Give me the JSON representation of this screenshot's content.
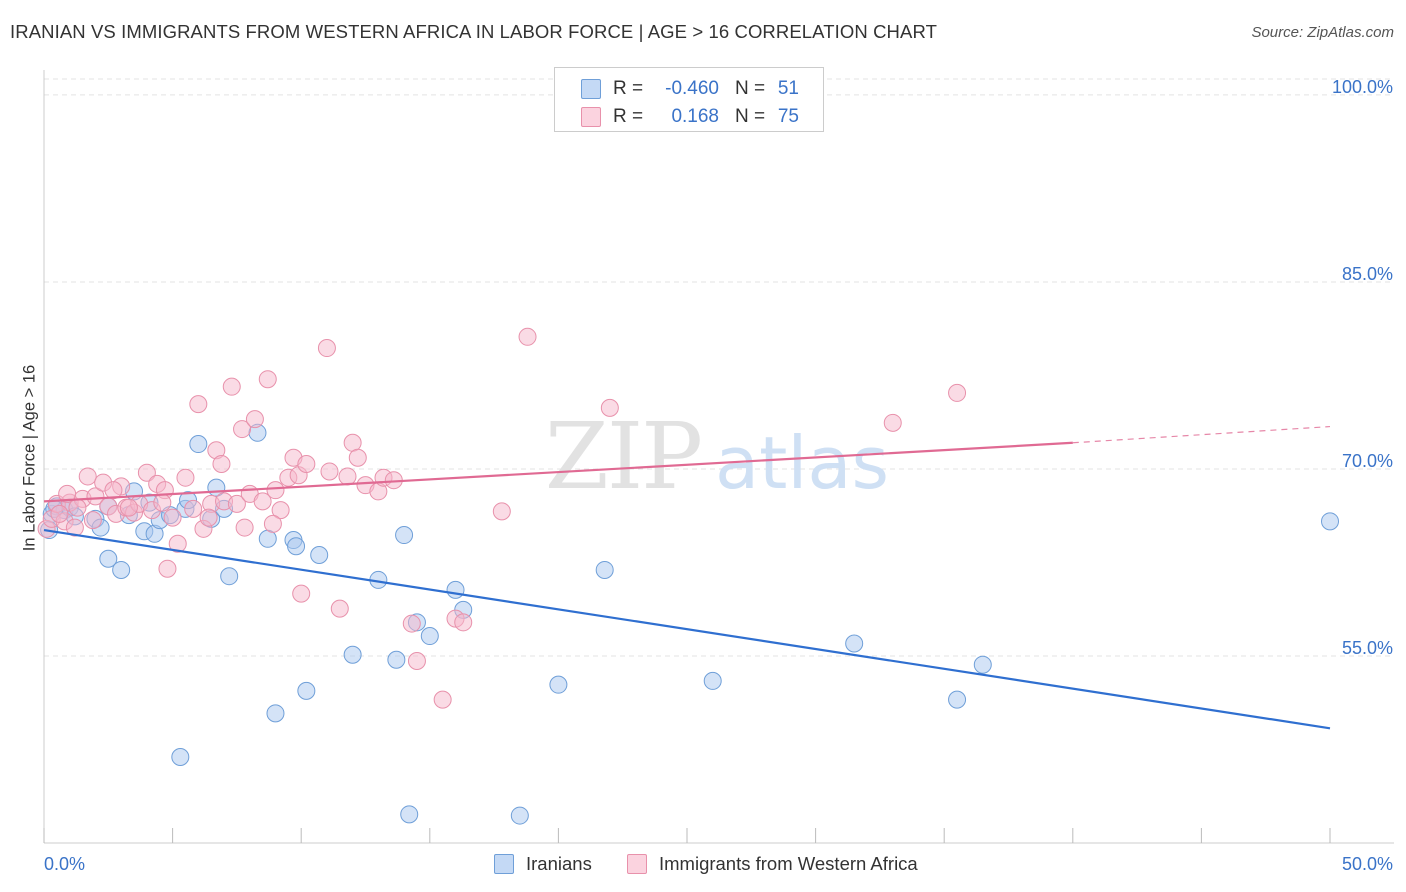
{
  "chart_data": {
    "type": "scatter",
    "title": "IRANIAN VS IMMIGRANTS FROM WESTERN AFRICA IN LABOR FORCE | AGE > 16 CORRELATION CHART",
    "source": "Source: ZipAtlas.com",
    "xlabel": "",
    "ylabel": "In Labor Force | Age > 16",
    "xlim": [
      0,
      50
    ],
    "ylim": [
      40,
      102
    ],
    "x_tick_labels": {
      "left": "0.0%",
      "right": "50.0%"
    },
    "y_ticks": [
      {
        "value": 100,
        "label": "100.0%"
      },
      {
        "value": 85,
        "label": "85.0%"
      },
      {
        "value": 70,
        "label": "70.0%"
      },
      {
        "value": 55,
        "label": "55.0%"
      }
    ],
    "grid": true,
    "legend_position": "top-center",
    "watermark": "ZIPatlas",
    "legend_stats": [
      {
        "r_label": "R =",
        "r_value": "-0.460",
        "n_label": "N =",
        "n_value": "51",
        "color": "#a9c8f0"
      },
      {
        "r_label": "R =",
        "r_value": "0.168",
        "n_label": "N =",
        "n_value": "75",
        "color": "#f5b8cb"
      }
    ],
    "series": [
      {
        "name": "Iranians",
        "color": "#a9c8f0",
        "stroke": "#6f9fd8",
        "trend_color": "#2f6fd0",
        "trend": {
          "x0": 0,
          "y0": 65.1,
          "x1": 50,
          "y1": 49.2
        },
        "points": [
          [
            0.2,
            65.1
          ],
          [
            0.3,
            66.4
          ],
          [
            0.5,
            67.0
          ],
          [
            0.8,
            66.7
          ],
          [
            1.0,
            66.9
          ],
          [
            1.2,
            66.2
          ],
          [
            2.0,
            66.0
          ],
          [
            2.2,
            65.3
          ],
          [
            2.5,
            67.0
          ],
          [
            2.5,
            62.8
          ],
          [
            3.0,
            61.9
          ],
          [
            3.3,
            66.3
          ],
          [
            3.5,
            68.2
          ],
          [
            3.9,
            65.0
          ],
          [
            4.1,
            67.3
          ],
          [
            4.3,
            64.8
          ],
          [
            4.5,
            65.9
          ],
          [
            4.9,
            66.3
          ],
          [
            5.3,
            46.9
          ],
          [
            5.5,
            66.8
          ],
          [
            5.6,
            67.5
          ],
          [
            6.0,
            72.0
          ],
          [
            6.5,
            66.0
          ],
          [
            6.7,
            68.5
          ],
          [
            7.0,
            66.8
          ],
          [
            7.2,
            61.4
          ],
          [
            8.3,
            72.9
          ],
          [
            8.7,
            64.4
          ],
          [
            9.0,
            50.4
          ],
          [
            9.7,
            64.3
          ],
          [
            9.8,
            63.8
          ],
          [
            10.2,
            52.2
          ],
          [
            10.7,
            63.1
          ],
          [
            12.0,
            55.1
          ],
          [
            13.0,
            61.1
          ],
          [
            13.7,
            54.7
          ],
          [
            14.0,
            64.7
          ],
          [
            14.2,
            42.3
          ],
          [
            14.5,
            57.7
          ],
          [
            15.0,
            56.6
          ],
          [
            16.0,
            60.3
          ],
          [
            16.3,
            58.7
          ],
          [
            18.5,
            42.2
          ],
          [
            20.0,
            52.7
          ],
          [
            21.8,
            61.9
          ],
          [
            26.0,
            53.0
          ],
          [
            31.5,
            56.0
          ],
          [
            35.5,
            51.5
          ],
          [
            36.5,
            54.3
          ],
          [
            50.0,
            65.8
          ],
          [
            0.4,
            66.8
          ]
        ]
      },
      {
        "name": "Immigrants from Western Africa",
        "color": "#f5b8cb",
        "stroke": "#e891ab",
        "trend_color": "#e06a93",
        "trend": {
          "x0": 0,
          "y0": 67.4,
          "x1": 40,
          "y1": 72.1,
          "dash_to_x": 50,
          "dash_to_y": 73.4
        },
        "points": [
          [
            0.1,
            65.2
          ],
          [
            0.3,
            66.0
          ],
          [
            0.5,
            67.2
          ],
          [
            0.8,
            65.8
          ],
          [
            1.0,
            67.3
          ],
          [
            1.2,
            65.3
          ],
          [
            1.5,
            67.6
          ],
          [
            1.7,
            69.4
          ],
          [
            2.0,
            67.8
          ],
          [
            2.3,
            68.9
          ],
          [
            2.5,
            67.0
          ],
          [
            2.8,
            66.4
          ],
          [
            3.0,
            68.6
          ],
          [
            3.2,
            66.9
          ],
          [
            3.5,
            66.5
          ],
          [
            3.7,
            67.2
          ],
          [
            4.0,
            69.7
          ],
          [
            4.2,
            66.7
          ],
          [
            4.4,
            68.8
          ],
          [
            4.7,
            68.3
          ],
          [
            4.8,
            62.0
          ],
          [
            5.0,
            66.1
          ],
          [
            5.2,
            64.0
          ],
          [
            5.5,
            69.3
          ],
          [
            5.8,
            66.8
          ],
          [
            6.0,
            75.2
          ],
          [
            6.2,
            65.2
          ],
          [
            6.5,
            67.2
          ],
          [
            6.7,
            71.5
          ],
          [
            6.9,
            70.4
          ],
          [
            7.0,
            67.4
          ],
          [
            7.3,
            76.6
          ],
          [
            7.5,
            67.2
          ],
          [
            7.7,
            73.2
          ],
          [
            7.8,
            65.3
          ],
          [
            8.0,
            68.0
          ],
          [
            8.2,
            74.0
          ],
          [
            8.5,
            67.4
          ],
          [
            8.7,
            77.2
          ],
          [
            9.0,
            68.3
          ],
          [
            9.2,
            66.7
          ],
          [
            9.5,
            69.3
          ],
          [
            9.7,
            70.9
          ],
          [
            9.9,
            69.5
          ],
          [
            10.2,
            70.4
          ],
          [
            10.0,
            60.0
          ],
          [
            11.0,
            79.7
          ],
          [
            11.1,
            69.8
          ],
          [
            11.5,
            58.8
          ],
          [
            11.8,
            69.4
          ],
          [
            12.0,
            72.1
          ],
          [
            12.2,
            70.9
          ],
          [
            12.5,
            68.7
          ],
          [
            13.0,
            68.2
          ],
          [
            13.2,
            69.3
          ],
          [
            13.6,
            69.1
          ],
          [
            14.3,
            57.6
          ],
          [
            14.5,
            54.6
          ],
          [
            15.5,
            51.5
          ],
          [
            16.0,
            58.0
          ],
          [
            16.3,
            57.7
          ],
          [
            17.8,
            66.6
          ],
          [
            18.8,
            80.6
          ],
          [
            22.0,
            74.9
          ],
          [
            33.0,
            73.7
          ],
          [
            35.5,
            76.1
          ],
          [
            0.6,
            66.4
          ],
          [
            0.9,
            68.0
          ],
          [
            1.3,
            66.9
          ],
          [
            1.9,
            65.9
          ],
          [
            2.7,
            68.3
          ],
          [
            3.3,
            66.9
          ],
          [
            4.6,
            67.3
          ],
          [
            6.4,
            66.1
          ],
          [
            8.9,
            65.6
          ]
        ]
      }
    ]
  }
}
